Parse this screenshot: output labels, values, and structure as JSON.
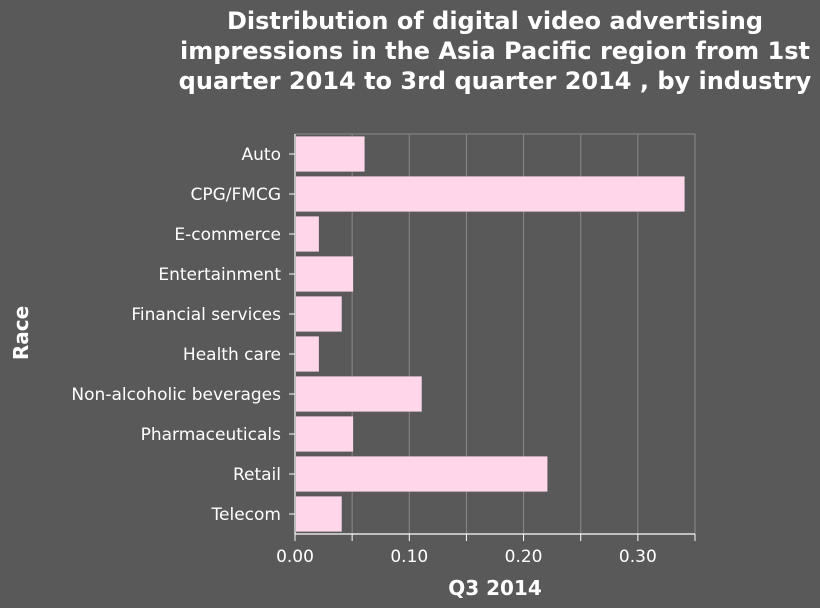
{
  "chart_data": {
    "type": "bar",
    "orientation": "horizontal",
    "title": "Distribution of digital video advertising impressions in the Asia Pacific region from 1st quarter 2014 to 3rd quarter 2014 , by industry",
    "xlabel": "Q3 2014",
    "ylabel": "Race",
    "categories": [
      "Auto",
      "CPG/FMCG",
      "E-commerce",
      "Entertainment",
      "Financial services",
      "Health care",
      "Non-alcoholic beverages",
      "Pharmaceuticals",
      "Retail",
      "Telecom"
    ],
    "values": [
      0.06,
      0.34,
      0.02,
      0.05,
      0.04,
      0.02,
      0.11,
      0.05,
      0.22,
      0.04
    ],
    "xlim": [
      0,
      0.35
    ],
    "xticks": [
      0.0,
      0.1,
      0.2,
      0.3
    ],
    "xtick_labels": [
      "0.00",
      "0.10",
      "0.20",
      "0.30"
    ],
    "grid": true,
    "colors": {
      "background": "#595959",
      "bar": "#ffd6ea",
      "grid": "#8a8a8a",
      "text": "#ffffff"
    }
  }
}
